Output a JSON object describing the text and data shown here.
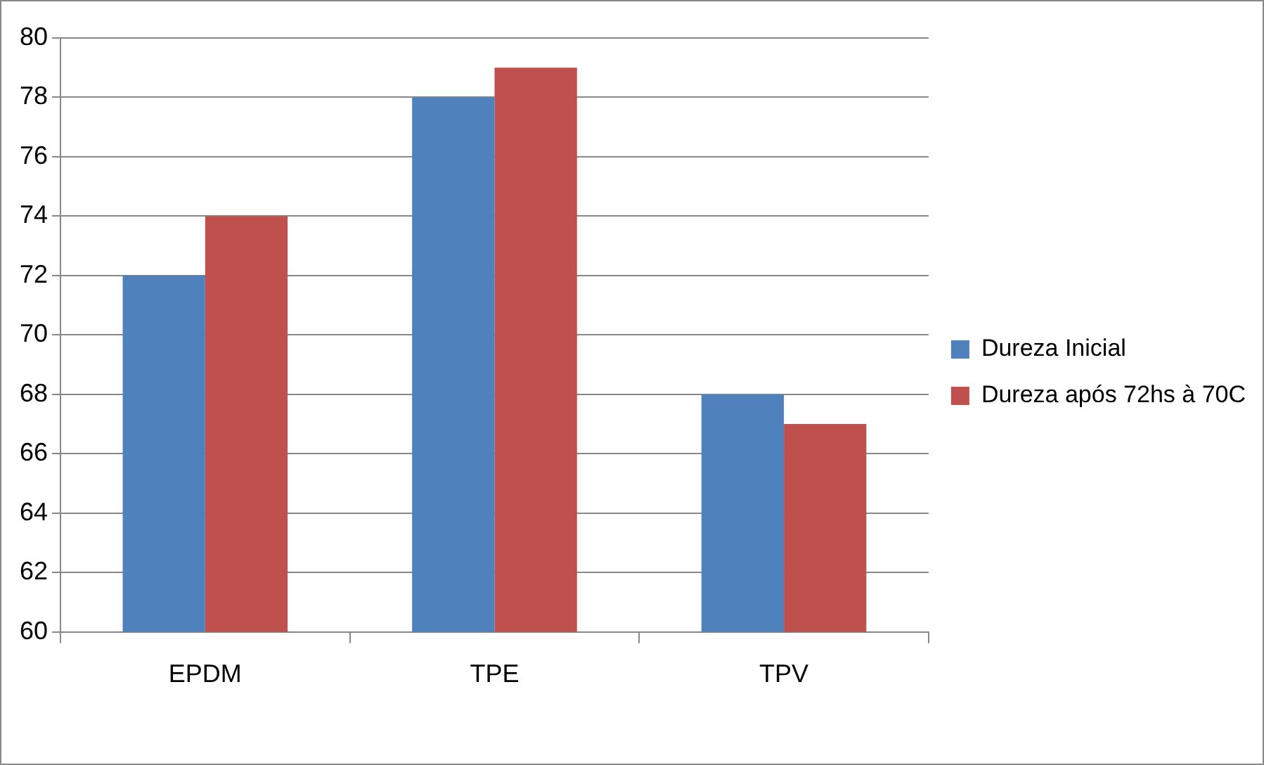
{
  "chart_data": {
    "type": "bar",
    "categories": [
      "EPDM",
      "TPE",
      "TPV"
    ],
    "series": [
      {
        "name": "Dureza Inicial",
        "color": "#4f81bd",
        "values": [
          72,
          78,
          68
        ]
      },
      {
        "name": "Dureza após 72hs à 70C",
        "color": "#c0504d",
        "values": [
          74,
          79,
          67
        ]
      }
    ],
    "ylim": [
      60,
      80
    ],
    "yticks": [
      60,
      62,
      64,
      66,
      68,
      70,
      72,
      74,
      76,
      78,
      80
    ],
    "grid": "y",
    "legend": "right"
  }
}
